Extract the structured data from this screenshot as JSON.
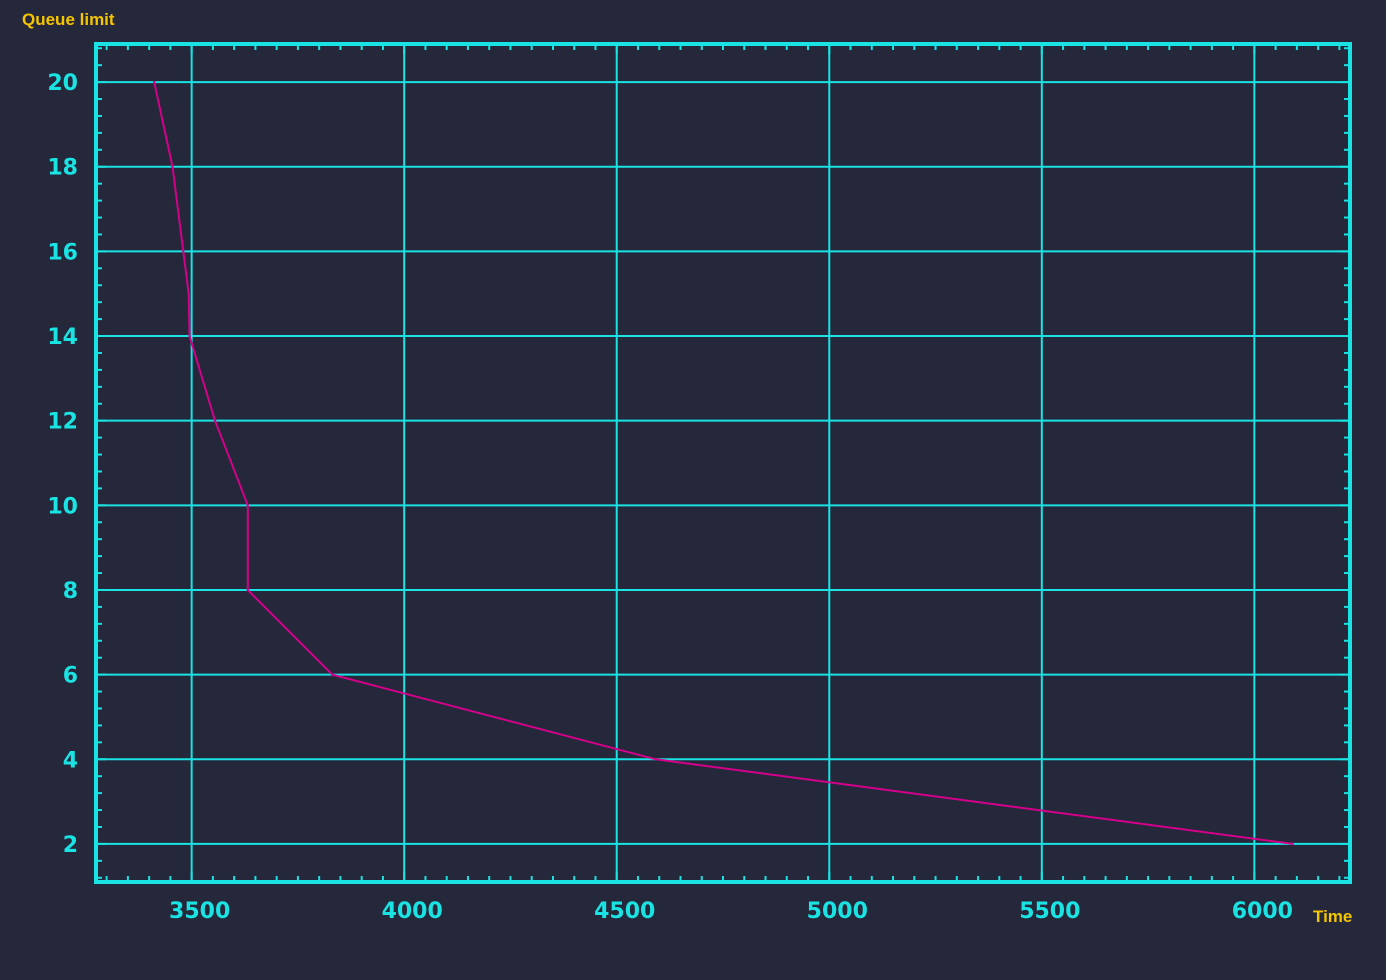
{
  "chart_data": {
    "type": "line",
    "xlabel": "Time",
    "ylabel": "Queue limit",
    "xlim": [
      3275,
      6225
    ],
    "ylim": [
      1.1,
      20.9
    ],
    "x_ticks": [
      3500,
      4000,
      4500,
      5000,
      5500,
      6000
    ],
    "y_ticks": [
      2,
      4,
      6,
      8,
      10,
      12,
      14,
      16,
      18,
      20
    ],
    "grid": true,
    "series": [
      {
        "color": "#d4008a",
        "x": [
          3412,
          3455,
          3493,
          3495,
          3555,
          3632,
          3632,
          3831,
          4592,
          6090
        ],
        "y": [
          20,
          18,
          15,
          14,
          12,
          10,
          8,
          6,
          4,
          2
        ]
      }
    ],
    "colors": {
      "background": "#25273a",
      "axis": "#19e3e3",
      "grid": "#19e3e3",
      "label": "#f5c500"
    }
  }
}
